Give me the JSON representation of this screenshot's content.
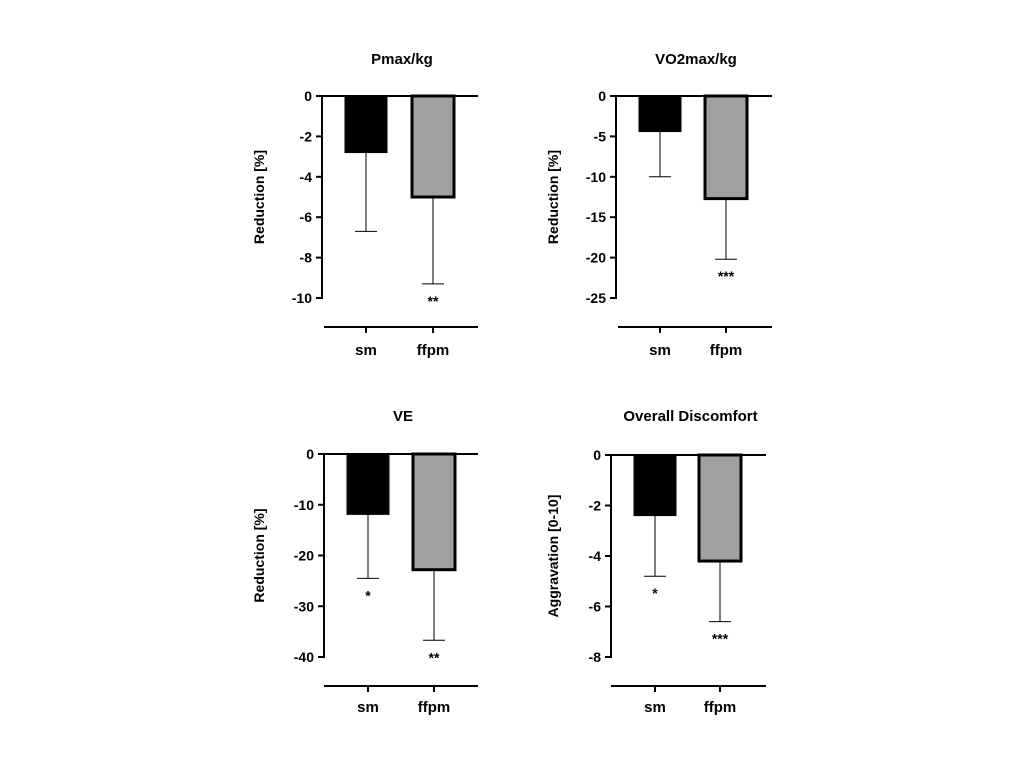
{
  "chart_data": [
    {
      "type": "bar",
      "title": "Pmax/kg",
      "ylabel": "Reduction [%]",
      "xlabel": "",
      "categories": [
        "sm",
        "ffpm"
      ],
      "values": [
        -2.8,
        -5.0
      ],
      "errors": [
        3.9,
        4.3
      ],
      "significance": [
        "",
        "**"
      ],
      "colors": [
        "#000000",
        "#a0a0a0"
      ],
      "ylim": [
        -10,
        0
      ],
      "yticks": [
        0,
        -2,
        -4,
        -6,
        -8,
        -10
      ],
      "grid": false
    },
    {
      "type": "bar",
      "title": "VO2max/kg",
      "ylabel": "Reduction [%]",
      "xlabel": "",
      "categories": [
        "sm",
        "ffpm"
      ],
      "values": [
        -4.4,
        -12.7
      ],
      "errors": [
        5.6,
        7.5
      ],
      "significance": [
        "",
        "***"
      ],
      "colors": [
        "#000000",
        "#a0a0a0"
      ],
      "ylim": [
        -25,
        0
      ],
      "yticks": [
        0,
        -5,
        -10,
        -15,
        -20,
        -25
      ],
      "grid": false
    },
    {
      "type": "bar",
      "title": "VE",
      "ylabel": "Reduction [%]",
      "xlabel": "",
      "categories": [
        "sm",
        "ffpm"
      ],
      "values": [
        -11.9,
        -22.8
      ],
      "errors": [
        12.6,
        13.9
      ],
      "significance": [
        "*",
        "**"
      ],
      "colors": [
        "#000000",
        "#a0a0a0"
      ],
      "ylim": [
        -40,
        0
      ],
      "yticks": [
        0,
        -10,
        -20,
        -30,
        -40
      ],
      "grid": false
    },
    {
      "type": "bar",
      "title": "Overall Discomfort",
      "ylabel": "Aggravation [0-10]",
      "xlabel": "",
      "categories": [
        "sm",
        "ffpm"
      ],
      "values": [
        -2.4,
        -4.2
      ],
      "errors": [
        2.4,
        2.4
      ],
      "significance": [
        "*",
        "***"
      ],
      "colors": [
        "#000000",
        "#a0a0a0"
      ],
      "ylim": [
        -8,
        0
      ],
      "yticks": [
        0,
        -2,
        -4,
        -6,
        -8
      ],
      "grid": false
    }
  ]
}
